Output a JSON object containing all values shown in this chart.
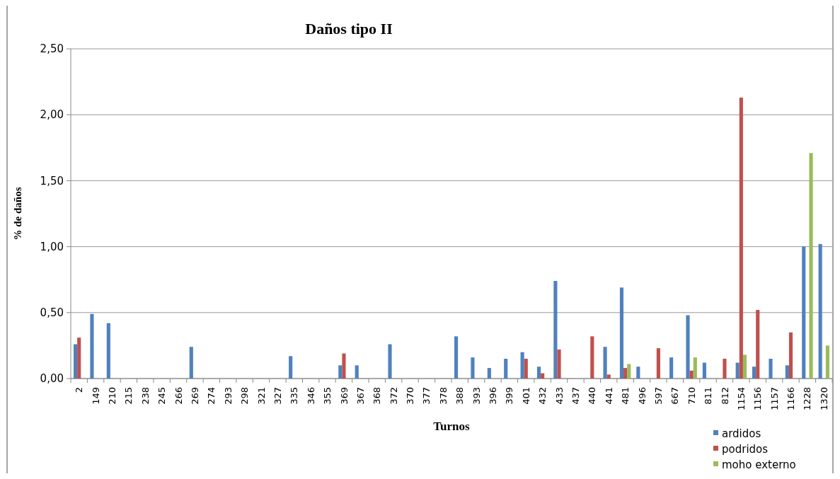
{
  "chart_data": {
    "type": "bar",
    "title": "Daños tipo II",
    "xlabel": "Turnos",
    "ylabel": "% de daños",
    "categories": [
      "2",
      "149",
      "210",
      "215",
      "238",
      "245",
      "266",
      "269",
      "274",
      "293",
      "298",
      "321",
      "327",
      "335",
      "346",
      "355",
      "369",
      "367",
      "368",
      "372",
      "370",
      "377",
      "378",
      "388",
      "393",
      "396",
      "399",
      "401",
      "432",
      "433",
      "437",
      "440",
      "441",
      "481",
      "496",
      "597",
      "667",
      "710",
      "811",
      "812",
      "1154",
      "1156",
      "1157",
      "1166",
      "1228",
      "1320"
    ],
    "series": [
      {
        "name": "ardidos",
        "color": "#4f81bd",
        "values": [
          0.26,
          0.49,
          0.42,
          0,
          0,
          0,
          0,
          0.24,
          0,
          0,
          0,
          0,
          0,
          0.17,
          0,
          0,
          0.1,
          0.1,
          0,
          0.26,
          0,
          0,
          0,
          0.32,
          0.16,
          0.08,
          0.15,
          0.2,
          0.09,
          0.74,
          0,
          0,
          0.24,
          0.69,
          0.09,
          0,
          0.16,
          0.48,
          0.12,
          0,
          0.12,
          0.09,
          0.15,
          0.1,
          1.0,
          1.02
        ]
      },
      {
        "name": "podridos",
        "color": "#c0504d",
        "values": [
          0.31,
          0,
          0,
          0,
          0,
          0,
          0,
          0,
          0,
          0,
          0,
          0,
          0,
          0,
          0,
          0,
          0.19,
          0,
          0,
          0,
          0,
          0,
          0,
          0,
          0,
          0,
          0,
          0.15,
          0.04,
          0.22,
          0,
          0.32,
          0.03,
          0.08,
          0,
          0.23,
          0,
          0.06,
          0,
          0.15,
          2.13,
          0.52,
          0,
          0.35,
          0,
          0
        ]
      },
      {
        "name": "moho externo",
        "color": "#9bbb59",
        "values": [
          0,
          0,
          0,
          0,
          0,
          0,
          0,
          0,
          0,
          0,
          0,
          0,
          0,
          0,
          0,
          0,
          0,
          0,
          0,
          0,
          0,
          0,
          0,
          0,
          0,
          0,
          0,
          0,
          0,
          0,
          0,
          0,
          0,
          0.11,
          0,
          0,
          0,
          0.16,
          0,
          0,
          0.18,
          0,
          0,
          0,
          1.71,
          0.25
        ]
      }
    ],
    "ylim": [
      0,
      2.5
    ],
    "yticks": [
      {
        "value": 0,
        "label": "0,00"
      },
      {
        "value": 0.5,
        "label": "0,50"
      },
      {
        "value": 1,
        "label": "1,00"
      },
      {
        "value": 1.5,
        "label": "1,50"
      },
      {
        "value": 2,
        "label": "2,00"
      },
      {
        "value": 2.5,
        "label": "2,50"
      }
    ],
    "grid": "y",
    "legend": "bottom right"
  }
}
